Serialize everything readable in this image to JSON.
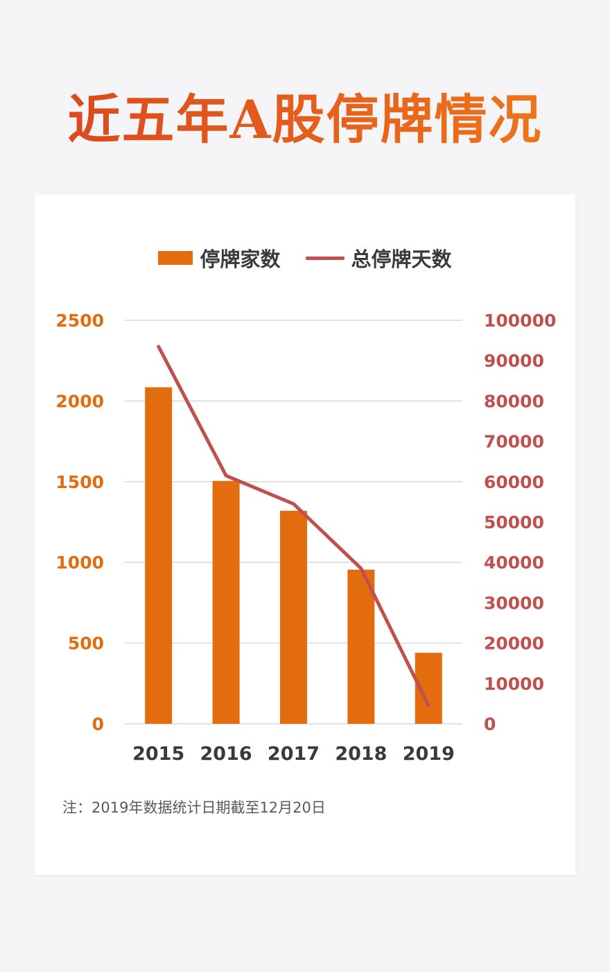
{
  "title": "近五年A股停牌情况",
  "footnote": "注：2019年数据统计日期截至12月20日",
  "colors": {
    "bar": "#e36c0e",
    "line": "#c0504d",
    "left_axis": "#e36c0e",
    "right_axis": "#c0504d",
    "grid": "#d9d9d9"
  },
  "chart_data": {
    "type": "bar",
    "categories": [
      "2015",
      "2016",
      "2017",
      "2018",
      "2019"
    ],
    "series": [
      {
        "name": "停牌家数",
        "type": "bar",
        "axis": "left",
        "values": [
          2085,
          1505,
          1320,
          955,
          440
        ]
      },
      {
        "name": "总停牌天数",
        "type": "line",
        "axis": "right",
        "values": [
          93500,
          61500,
          54500,
          38500,
          4500
        ]
      }
    ],
    "y_left": {
      "ylim": [
        0,
        2500
      ],
      "ticks": [
        "0",
        "500",
        "1000",
        "1500",
        "2000",
        "2500"
      ]
    },
    "y_right": {
      "ylim": [
        0,
        100000
      ],
      "ticks": [
        "0",
        "10000",
        "20000",
        "30000",
        "40000",
        "50000",
        "60000",
        "70000",
        "80000",
        "90000",
        "100000"
      ]
    },
    "grid": true,
    "legend_position": "top-center"
  }
}
